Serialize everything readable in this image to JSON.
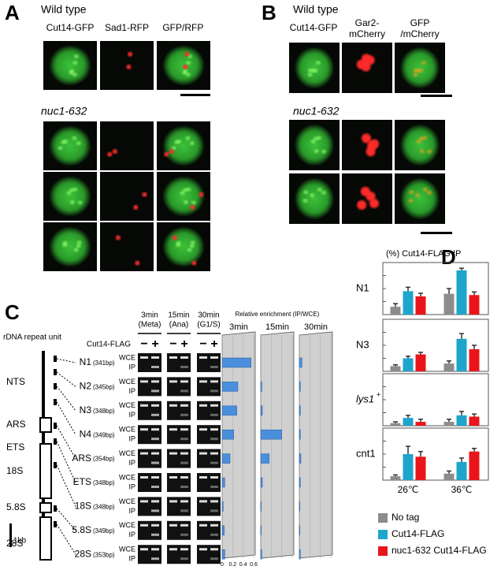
{
  "panels": {
    "A": {
      "label": "A",
      "wild_type": "Wild type",
      "mutant": "nuc1-632",
      "columns": [
        "Cut14-GFP",
        "Sad1-RFP"
      ],
      "merge": [
        "GFP",
        "/RFP"
      ]
    },
    "B": {
      "label": "B",
      "wild_type": "Wild type",
      "mutant": "nuc1-632",
      "column": "Cut14-GFP",
      "red_column": [
        "Gar2-",
        "mCherry"
      ],
      "merge": [
        "GFP",
        "/mCherry"
      ]
    },
    "C": {
      "label": "C",
      "repeat_title": "rDNA repeat unit",
      "regions": [
        "NTS",
        "ARS",
        "ETS",
        "18S",
        "5.8S",
        "28S"
      ],
      "scale": "1kb",
      "primer_sizes": [
        "(341bp)",
        "(345bp)",
        "(348bp)",
        "(349bp)",
        "(354bp)",
        "(348bp)",
        "(348bp)",
        "(349bp)",
        "(353bp)"
      ],
      "gel_headers": [
        [
          "3min",
          "(Meta)"
        ],
        [
          "15min",
          "(Ana)"
        ],
        [
          "30min",
          "(G1/S)"
        ]
      ],
      "tag": "Cut14-FLAG",
      "signs": [
        [
          "−",
          "+"
        ],
        [
          "−",
          "+"
        ],
        [
          "−",
          "+"
        ]
      ],
      "gel_rows": [
        [
          "WCE",
          "IP"
        ],
        [
          "WCE",
          "IP"
        ],
        [
          "WCE",
          "IP"
        ],
        [
          "WCE",
          "IP"
        ],
        [
          "WCE",
          "IP"
        ],
        [
          "WCE",
          "IP"
        ],
        [
          "WCE",
          "IP"
        ],
        [
          "WCE",
          "IP"
        ],
        [
          "WCE",
          "IP"
        ]
      ]
    },
    "D": {
      "label": "D"
    }
  },
  "chart_data": [
    {
      "type": "bar",
      "title": "(%) Cut14-FLAG IP",
      "categories": [
        "26℃",
        "36℃"
      ],
      "series": [
        {
          "name": "No tag",
          "color": "#8c8c8c"
        },
        {
          "name": "Cut14-FLAG",
          "color": "#1ea5cc"
        },
        {
          "name": "nuc1-632 Cut14-FLAG",
          "color": "#e8161b"
        }
      ],
      "facets": [
        {
          "label": "N1",
          "ylim": [
            0,
            0.2
          ],
          "values": [
            [
              0.03,
              0.08
            ],
            [
              0.09,
              0.17
            ],
            [
              0.07,
              0.075
            ]
          ],
          "errors": [
            [
              0.012,
              0.02
            ],
            [
              0.015,
              0.008
            ],
            [
              0.012,
              0.012
            ]
          ]
        },
        {
          "label": "N3",
          "ylim": [
            0,
            0.2
          ],
          "values": [
            [
              0.02,
              0.03
            ],
            [
              0.05,
              0.125
            ],
            [
              0.065,
              0.085
            ]
          ],
          "errors": [
            [
              0.005,
              0.01
            ],
            [
              0.008,
              0.02
            ],
            [
              0.008,
              0.015
            ]
          ]
        },
        {
          "label": "lys1",
          "sup": "+",
          "ylim": [
            0,
            0.2
          ],
          "values": [
            [
              0.01,
              0.015
            ],
            [
              0.03,
              0.04
            ],
            [
              0.015,
              0.035
            ]
          ],
          "errors": [
            [
              0.005,
              0.01
            ],
            [
              0.01,
              0.015
            ],
            [
              0.01,
              0.01
            ]
          ]
        },
        {
          "label": "cnt1",
          "ylim": [
            0,
            0.2
          ],
          "values": [
            [
              0.015,
              0.025
            ],
            [
              0.1,
              0.07
            ],
            [
              0.09,
              0.11
            ]
          ],
          "errors": [
            [
              0.005,
              0.01
            ],
            [
              0.03,
              0.015
            ],
            [
              0.02,
              0.012
            ]
          ]
        }
      ]
    },
    {
      "type": "hbar",
      "title": "Relative enrichment (IP/WCE)",
      "categories": [
        "N1",
        "N2",
        "N3",
        "N4",
        "ARS",
        "ETS",
        "18S",
        "5.8S",
        "28S"
      ],
      "color": "#4a8fdc",
      "xlim": [
        0,
        0.6
      ],
      "xticks": [
        0,
        0.2,
        0.4,
        0.6
      ],
      "facets": [
        {
          "label": "3min",
          "values": [
            0.55,
            0.3,
            0.28,
            0.22,
            0.15,
            0.05,
            0.02,
            0.04,
            0.05
          ]
        },
        {
          "label": "15min",
          "values": [
            0,
            0.02,
            0.03,
            0.4,
            0.16,
            0.03,
            0.01,
            0.01,
            0.02
          ]
        },
        {
          "label": "30min",
          "values": [
            0.05,
            0.02,
            0.02,
            0.02,
            0.03,
            0.02,
            0.01,
            0.01,
            0.02
          ]
        }
      ]
    }
  ]
}
